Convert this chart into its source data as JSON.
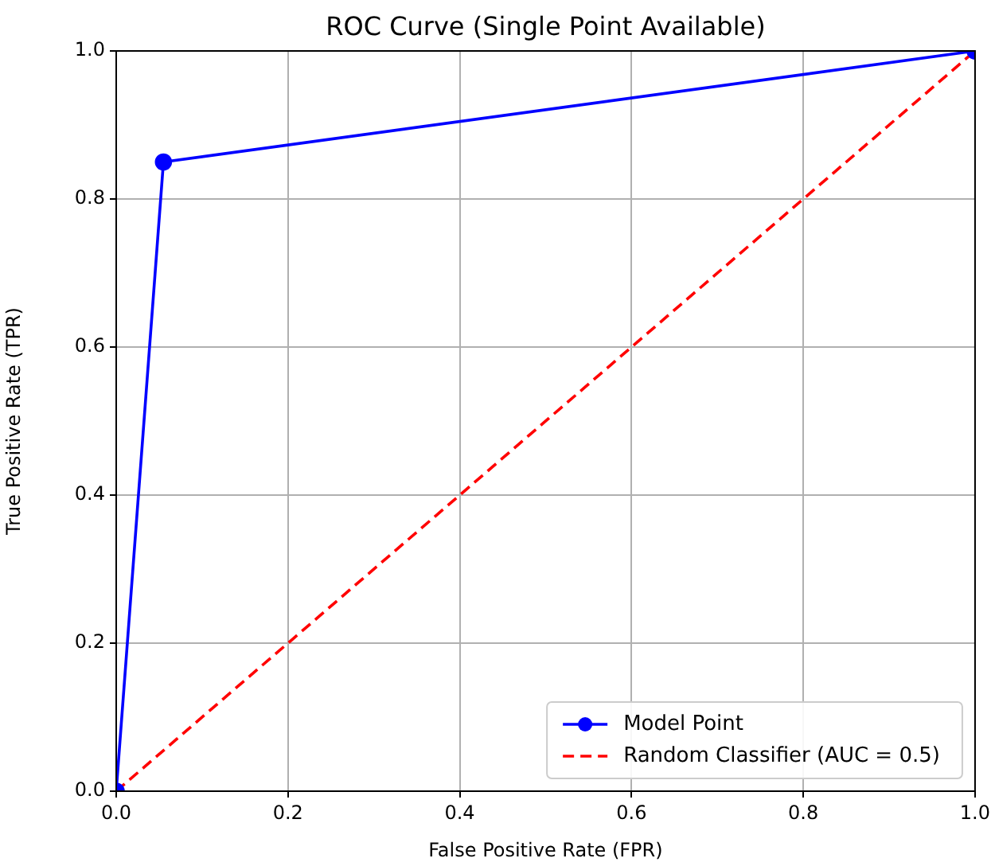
{
  "chart_data": {
    "type": "line",
    "title": "ROC Curve (Single Point Available)",
    "xlabel": "False Positive Rate (FPR)",
    "ylabel": "True Positive Rate (TPR)",
    "xlim": [
      0,
      1
    ],
    "ylim": [
      0,
      1
    ],
    "xticks": [
      {
        "value": 0,
        "label": "0.0"
      },
      {
        "value": 0.2,
        "label": "0.2"
      },
      {
        "value": 0.4,
        "label": "0.4"
      },
      {
        "value": 0.6,
        "label": "0.6"
      },
      {
        "value": 0.8,
        "label": "0.8"
      },
      {
        "value": 1,
        "label": "1.0"
      }
    ],
    "yticks": [
      {
        "value": 0,
        "label": "0.0"
      },
      {
        "value": 0.2,
        "label": "0.2"
      },
      {
        "value": 0.4,
        "label": "0.4"
      },
      {
        "value": 0.6,
        "label": "0.6"
      },
      {
        "value": 0.8,
        "label": "0.8"
      },
      {
        "value": 1,
        "label": "1.0"
      }
    ],
    "grid": true,
    "legend": "bottom right",
    "series": [
      {
        "name": "Model Point",
        "color": "#0000ff",
        "x": [
          0,
          0.055,
          1
        ],
        "values": [
          0,
          0.85,
          1
        ],
        "marker": "circle",
        "line_style": "solid"
      },
      {
        "name": "Random Classifier (AUC = 0.5)",
        "color": "#ff0000",
        "x": [
          0,
          1
        ],
        "values": [
          0,
          1
        ],
        "marker": "none",
        "line_style": "dashed"
      }
    ]
  }
}
